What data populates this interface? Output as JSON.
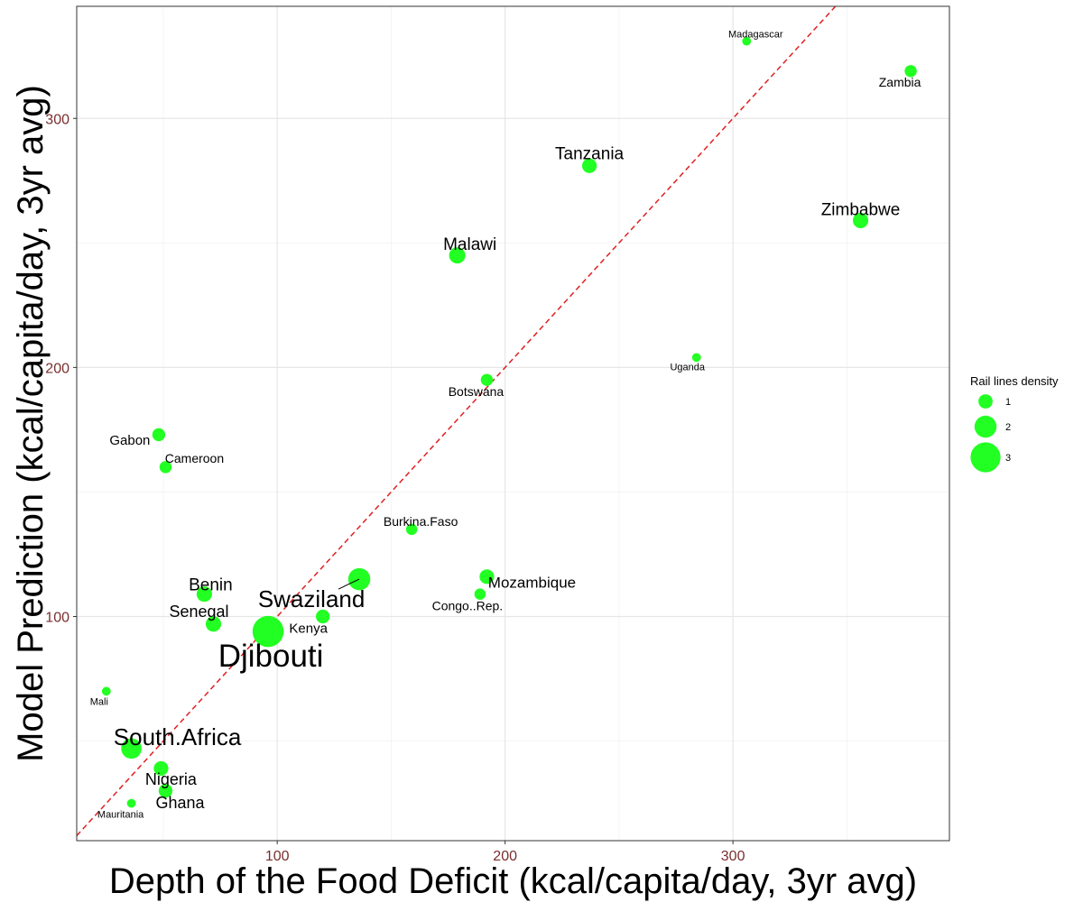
{
  "chart_data": {
    "type": "scatter",
    "xlabel": "Depth of the Food Deficit (kcal/capita/day, 3yr avg)",
    "ylabel": "Model Prediction (kcal/capita/day, 3yr avg)",
    "xlim": [
      12,
      395
    ],
    "ylim": [
      10,
      345
    ],
    "xticks": [
      100,
      200,
      300
    ],
    "yticks": [
      100,
      200,
      300
    ],
    "grid": true,
    "reference_line": {
      "slope": 1,
      "intercept": 0,
      "style": "dashed",
      "color": "#e02020"
    },
    "point_color": "#22ff22",
    "legend": {
      "title": "Rail lines density",
      "entries": [
        {
          "label": "1",
          "value": 1
        },
        {
          "label": "2",
          "value": 2
        },
        {
          "label": "3",
          "value": 3
        }
      ],
      "position": "right"
    },
    "points": [
      {
        "name": "Madagascar",
        "x": 306,
        "y": 331,
        "size": 0.3
      },
      {
        "name": "Zambia",
        "x": 378,
        "y": 319,
        "size": 0.7
      },
      {
        "name": "Tanzania",
        "x": 237,
        "y": 281,
        "size": 1.0
      },
      {
        "name": "Zimbabwe",
        "x": 356,
        "y": 259,
        "size": 1.1
      },
      {
        "name": "Malawi",
        "x": 179,
        "y": 245,
        "size": 1.2
      },
      {
        "name": "Uganda",
        "x": 284,
        "y": 204,
        "size": 0.3
      },
      {
        "name": "Botswana",
        "x": 192,
        "y": 195,
        "size": 0.7
      },
      {
        "name": "Gabon",
        "x": 48,
        "y": 173,
        "size": 0.8
      },
      {
        "name": "Cameroon",
        "x": 51,
        "y": 160,
        "size": 0.7
      },
      {
        "name": "Burkina.Faso",
        "x": 159,
        "y": 135,
        "size": 0.6
      },
      {
        "name": "Mozambique",
        "x": 192,
        "y": 116,
        "size": 1.0
      },
      {
        "name": "Swaziland",
        "x": 136,
        "y": 115,
        "size": 1.9
      },
      {
        "name": "Benin",
        "x": 68,
        "y": 109,
        "size": 1.1
      },
      {
        "name": "Congo..Rep.",
        "x": 189,
        "y": 109,
        "size": 0.6
      },
      {
        "name": "Kenya",
        "x": 120,
        "y": 100,
        "size": 0.9
      },
      {
        "name": "Senegal",
        "x": 72,
        "y": 97,
        "size": 1.1
      },
      {
        "name": "Djibouti",
        "x": 96,
        "y": 94,
        "size": 3.0
      },
      {
        "name": "Mali",
        "x": 25,
        "y": 70,
        "size": 0.3
      },
      {
        "name": "South.Africa",
        "x": 36,
        "y": 47,
        "size": 1.7
      },
      {
        "name": "Nigeria",
        "x": 49,
        "y": 39,
        "size": 1.0
      },
      {
        "name": "Ghana",
        "x": 51,
        "y": 30,
        "size": 0.9
      },
      {
        "name": "Mauritania",
        "x": 36,
        "y": 25,
        "size": 0.3
      }
    ]
  }
}
